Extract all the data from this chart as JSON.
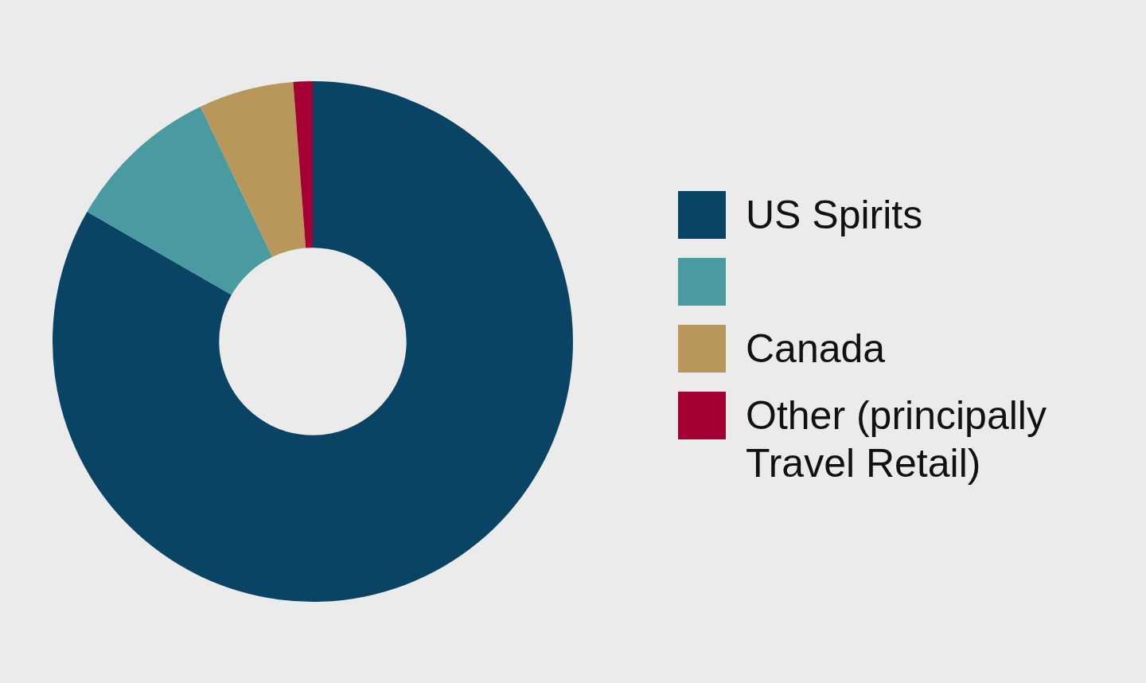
{
  "chart_data": {
    "type": "donut",
    "categories": [
      "US Spirits",
      null,
      "Canada",
      "Other (principally Travel Retail)"
    ],
    "values": [
      83.3,
      9.6,
      5.9,
      1.2
    ],
    "colors": [
      "#0a4465",
      "#4a9aa2",
      "#b9975b",
      "#a50034"
    ],
    "legend": "right"
  }
}
